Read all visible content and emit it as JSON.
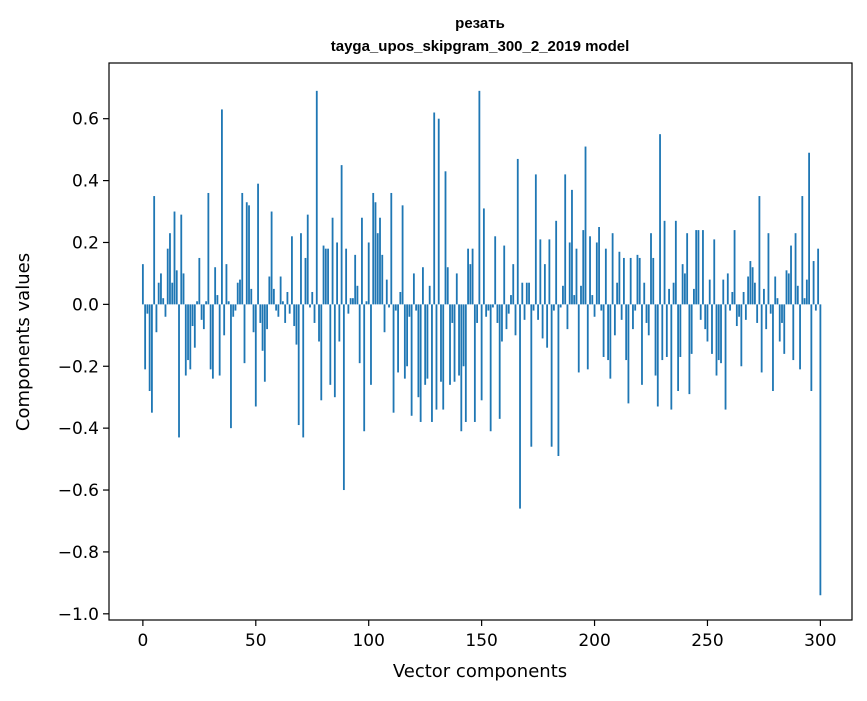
{
  "chart_data": {
    "type": "bar",
    "title": "резать",
    "subtitle": "tayga_upos_skipgram_300_2_2019 model",
    "xlabel": "Vector components",
    "ylabel": "Components values",
    "xlim": [
      -15,
      314
    ],
    "ylim": [
      -1.02,
      0.78
    ],
    "xticks": [
      0,
      50,
      100,
      150,
      200,
      250,
      300
    ],
    "xtick_labels": [
      "0",
      "50",
      "100",
      "150",
      "200",
      "250",
      "300"
    ],
    "yticks": [
      -1.0,
      -0.8,
      -0.6,
      -0.4,
      -0.2,
      0.0,
      0.2,
      0.4,
      0.6
    ],
    "ytick_labels": [
      "−1.0",
      "−0.8",
      "−0.6",
      "−0.4",
      "−0.2",
      "0.0",
      "0.2",
      "0.4",
      "0.6"
    ],
    "bar_color": "#1f77b4",
    "series": [
      {
        "name": "резать",
        "x_start": 0,
        "values": [
          0.13,
          -0.21,
          -0.03,
          -0.28,
          -0.35,
          0.35,
          -0.09,
          0.07,
          0.1,
          0.02,
          -0.04,
          0.18,
          0.23,
          0.07,
          0.3,
          0.11,
          -0.43,
          0.29,
          0.1,
          -0.23,
          -0.18,
          -0.21,
          -0.07,
          -0.14,
          0.01,
          0.15,
          -0.05,
          -0.08,
          0.01,
          0.36,
          -0.21,
          -0.24,
          0.12,
          0.03,
          -0.23,
          0.63,
          -0.1,
          0.13,
          0.01,
          -0.4,
          -0.04,
          -0.02,
          0.07,
          0.08,
          0.36,
          -0.19,
          0.33,
          0.32,
          0.05,
          -0.09,
          -0.33,
          0.39,
          -0.06,
          -0.15,
          -0.25,
          -0.08,
          0.09,
          0.3,
          0.05,
          -0.02,
          -0.04,
          0.09,
          0.01,
          -0.06,
          0.04,
          -0.03,
          0.22,
          -0.07,
          -0.13,
          -0.39,
          0.23,
          -0.43,
          0.15,
          0.29,
          -0.01,
          0.04,
          -0.06,
          0.69,
          -0.12,
          -0.31,
          0.19,
          0.18,
          0.18,
          -0.26,
          0.28,
          -0.3,
          0.2,
          -0.12,
          0.45,
          -0.6,
          0.18,
          -0.03,
          0.02,
          0.02,
          0.16,
          0.06,
          -0.19,
          0.28,
          -0.41,
          0.01,
          0.2,
          -0.26,
          0.36,
          0.33,
          0.23,
          0.28,
          0.16,
          -0.09,
          0.08,
          -0.01,
          0.36,
          -0.35,
          -0.02,
          -0.22,
          0.04,
          0.32,
          -0.24,
          -0.2,
          -0.04,
          -0.36,
          0.1,
          -0.02,
          -0.3,
          -0.38,
          0.12,
          -0.26,
          -0.24,
          0.06,
          -0.38,
          0.62,
          -0.34,
          0.6,
          -0.25,
          -0.34,
          0.43,
          0.12,
          -0.26,
          -0.06,
          -0.25,
          0.1,
          -0.23,
          -0.41,
          -0.2,
          -0.38,
          0.18,
          0.13,
          0.18,
          -0.38,
          -0.06,
          0.69,
          -0.31,
          0.31,
          -0.04,
          -0.02,
          -0.41,
          -0.01,
          0.22,
          -0.06,
          -0.37,
          -0.12,
          0.19,
          -0.08,
          -0.03,
          0.03,
          0.13,
          -0.1,
          0.47,
          -0.66,
          0.07,
          -0.05,
          0.07,
          0.07,
          -0.46,
          -0.02,
          0.42,
          -0.05,
          0.21,
          -0.11,
          0.13,
          -0.14,
          0.21,
          -0.46,
          -0.02,
          0.27,
          -0.49,
          -0.01,
          0.06,
          0.42,
          -0.08,
          0.2,
          0.37,
          0.03,
          0.18,
          -0.22,
          0.06,
          0.24,
          0.51,
          -0.21,
          0.22,
          0.03,
          -0.04,
          0.2,
          0.25,
          -0.02,
          -0.17,
          0.18,
          -0.18,
          -0.24,
          0.23,
          -0.1,
          0.07,
          0.17,
          -0.05,
          0.15,
          -0.18,
          -0.32,
          0.15,
          -0.08,
          -0.02,
          0.16,
          0.15,
          -0.26,
          0.07,
          -0.06,
          -0.1,
          0.23,
          0.15,
          -0.23,
          -0.33,
          0.55,
          -0.18,
          0.27,
          -0.17,
          0.05,
          -0.34,
          0.07,
          0.27,
          -0.28,
          -0.17,
          0.13,
          0.1,
          0.23,
          -0.29,
          -0.16,
          0.05,
          0.24,
          0.24,
          -0.05,
          0.24,
          -0.08,
          -0.12,
          0.08,
          -0.16,
          0.21,
          -0.23,
          -0.18,
          -0.19,
          0.08,
          -0.34,
          0.1,
          -0.02,
          0.04,
          0.24,
          -0.07,
          -0.04,
          -0.2,
          0.04,
          -0.05,
          0.09,
          0.14,
          0.12,
          0.07,
          -0.06,
          0.35,
          -0.22,
          0.05,
          -0.08,
          0.23,
          -0.03,
          -0.28,
          0.09,
          0.02,
          -0.12,
          -0.06,
          -0.16,
          0.11,
          0.1,
          0.19,
          -0.18,
          0.23,
          0.06,
          -0.21,
          0.35,
          0.02,
          0.08,
          0.49,
          -0.28,
          0.14,
          -0.02,
          0.18,
          -0.94
        ]
      }
    ]
  }
}
